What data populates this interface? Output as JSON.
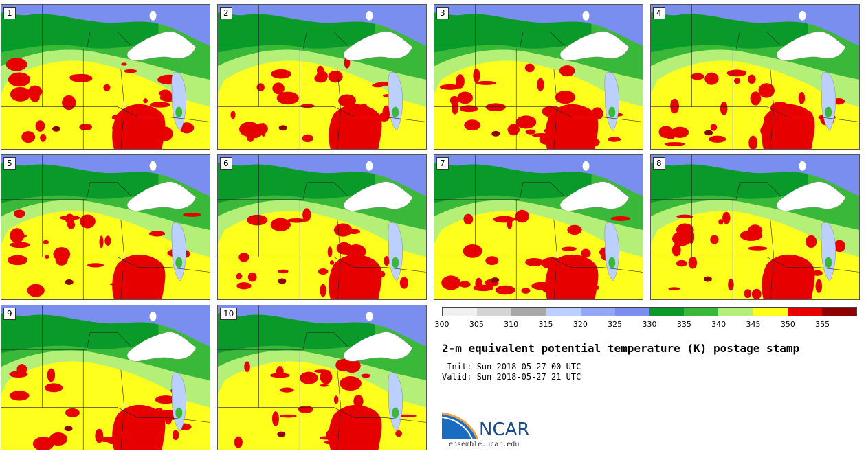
{
  "members": [
    "1",
    "2",
    "3",
    "4",
    "5",
    "6",
    "7",
    "8",
    "9",
    "10"
  ],
  "colorbar": {
    "colors": [
      "#f0f0f0",
      "#d4d4d4",
      "#a8a8a8",
      "#bcd0ff",
      "#94a8f8",
      "#7a8ef0",
      "#0a9a2a",
      "#3ab83a",
      "#b4f078",
      "#ffff1e",
      "#e60000",
      "#8c0000"
    ],
    "ticks": [
      "300",
      "305",
      "310",
      "315",
      "320",
      "325",
      "330",
      "335",
      "340",
      "345",
      "350",
      "355"
    ]
  },
  "title": "2-m equivalent potential temperature (K) postage stamp",
  "init": " Init: Sun 2018-05-27 00 UTC",
  "valid": "Valid: Sun 2018-05-27 21 UTC",
  "logo": {
    "text": "NCAR",
    "url": "ensemble.ucar.edu"
  }
}
